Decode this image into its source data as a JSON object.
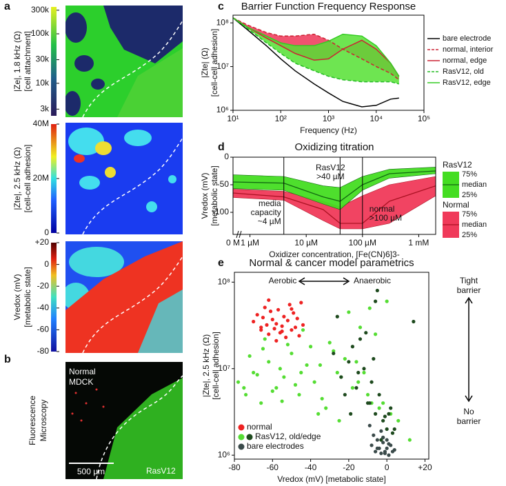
{
  "maps": [
    {
      "panel": "a",
      "ylabel": [
        "|Ze|, 1.8 kHz (Ω)",
        "[cell attachment]"
      ],
      "colorbar": {
        "log": true,
        "lim": [
          2200,
          350000
        ],
        "ticks": [
          {
            "value": 300000,
            "label": "300k"
          },
          {
            "value": 100000,
            "label": "100k"
          },
          {
            "value": 30000,
            "label": "30k"
          },
          {
            "value": 10000,
            "label": "10k"
          },
          {
            "value": 3000,
            "label": "3k"
          }
        ]
      }
    },
    {
      "ylabel": [
        "|Zte|, 2.5 kHz (Ω)",
        "[cell-cell adhesion]"
      ],
      "colorbar": {
        "log": false,
        "lim": [
          0,
          40000000
        ],
        "ticks": [
          {
            "value": 40000000,
            "label": "40M"
          },
          {
            "value": 20000000,
            "label": "20M"
          },
          0
        ]
      }
    },
    {
      "ylabel": [
        "Vredox (mV)",
        "[metabolic state]"
      ],
      "colorbar": {
        "log": false,
        "lim": [
          -80,
          20
        ],
        "ticks": [
          {
            "value": 20,
            "label": "+20"
          },
          0,
          -20,
          -40,
          -60,
          -80
        ]
      }
    }
  ],
  "microscopy": {
    "panel": "b",
    "ylabel": [
      "Fluorescence",
      "Microscopy"
    ],
    "top_label": [
      "Normal",
      "MDCK"
    ],
    "scale_bar": "500 µm",
    "bottom_label": "RasV12"
  },
  "chart_data": [
    {
      "type": "line",
      "panel": "c",
      "title": "Barrier Function Frequency Response",
      "xlabel": "Frequency (Hz)",
      "ylabel": [
        "|Zte| (Ω)",
        "[cell-cell adhesion]"
      ],
      "log_x": true,
      "log_y": true,
      "x": [
        10,
        20,
        50,
        100,
        200,
        500,
        1000,
        2000,
        5000,
        10000,
        20000,
        30000
      ],
      "xlim": [
        10,
        100000
      ],
      "ylim": [
        1000000,
        150000000
      ],
      "xticks": [
        {
          "value": 10,
          "label": "10¹"
        },
        {
          "value": 100,
          "label": "10²"
        },
        {
          "value": 1000,
          "label": "10³"
        },
        {
          "value": 10000,
          "label": "10⁴"
        },
        {
          "value": 100000,
          "label": "10⁵"
        }
      ],
      "yticks": [
        {
          "value": 1000000,
          "label": "10⁶"
        },
        {
          "value": 10000000,
          "label": "10⁷"
        },
        {
          "value": 100000000,
          "label": "10⁸"
        }
      ],
      "series": [
        {
          "name": "bare electrode",
          "color": "#000000",
          "dash": false,
          "values": [
            130000000.0,
            70000000.0,
            30000000.0,
            15000000.0,
            8000000.0,
            4000000.0,
            2500000.0,
            1600000.0,
            1200000.0,
            1300000.0,
            1800000.0,
            1900000.0
          ]
        },
        {
          "name": "normal, interior",
          "color": "#cc2233",
          "dash": true,
          "values": [
            130000000.0,
            90000000.0,
            60000000.0,
            50000000.0,
            50000000.0,
            55000000.0,
            40000000.0,
            25000000.0,
            15000000.0,
            10000000.0,
            7000000.0,
            5000000.0
          ]
        },
        {
          "name": "normal, edge",
          "color": "#cc2233",
          "dash": false,
          "values": [
            130000000.0,
            80000000.0,
            45000000.0,
            30000000.0,
            20000000.0,
            14000000.0,
            15000000.0,
            25000000.0,
            40000000.0,
            25000000.0,
            12000000.0,
            6000000.0
          ]
        },
        {
          "name": "RasV12, old",
          "color": "#22bb22",
          "dash": true,
          "values": [
            130000000.0,
            75000000.0,
            35000000.0,
            20000000.0,
            12000000.0,
            8000000.0,
            6000000.0,
            5000000.0,
            4500000.0,
            4500000.0,
            4500000.0,
            4000000.0
          ]
        },
        {
          "name": "RasV12, edge",
          "color": "#33cc22",
          "dash": false,
          "values": [
            130000000.0,
            80000000.0,
            50000000.0,
            35000000.0,
            30000000.0,
            30000000.0,
            38000000.0,
            55000000.0,
            50000000.0,
            30000000.0,
            12000000.0,
            6000000.0
          ]
        }
      ],
      "bands": [
        {
          "between": [
            1,
            2
          ],
          "color": "#f04060"
        },
        {
          "between": [
            3,
            4
          ],
          "color": "#55e033"
        }
      ]
    },
    {
      "type": "band",
      "panel": "d",
      "title": "Oxidizing titration",
      "xlabel": "Oxidizer concentration, [Fe(CN)6]3-",
      "ylabel": [
        "Vredox (mV)",
        "[metabolic state]"
      ],
      "log_x": true,
      "x": [
        0.5,
        4,
        20,
        40,
        100,
        300,
        2000
      ],
      "xlim": [
        0.5,
        2000
      ],
      "ylim": [
        -140,
        0
      ],
      "zero_tick": "0 M",
      "xticks": [
        {
          "value": 1,
          "label": "1 µM"
        },
        {
          "value": 10,
          "label": "10 µM"
        },
        {
          "value": 100,
          "label": "100 µM"
        },
        {
          "value": 1000,
          "label": "1 mM"
        }
      ],
      "yticks": [
        0,
        -50,
        -100
      ],
      "band_labels": [
        "75%",
        "median",
        "25%"
      ],
      "series": [
        {
          "name": "Normal",
          "color": "#aa1122",
          "fill": "#f03a5a",
          "values": [
            -65,
            -72,
            -95,
            -120,
            -120,
            -80,
            -52
          ],
          "upper": [
            -58,
            -62,
            -80,
            -90,
            -70,
            -50,
            -35
          ],
          "lower": [
            -73,
            -78,
            -115,
            -130,
            -130,
            -120,
            -70
          ]
        },
        {
          "name": "RasV12",
          "color": "#116611",
          "fill": "#44dd22",
          "values": [
            -45,
            -47,
            -72,
            -80,
            -50,
            -30,
            -25
          ],
          "upper": [
            -32,
            -35,
            -52,
            -55,
            -35,
            -22,
            -18
          ],
          "lower": [
            -57,
            -60,
            -85,
            -95,
            -60,
            -38,
            -30
          ]
        }
      ],
      "annotations": [
        {
          "lines": [
            "media",
            "capacity",
            "~4 µM"
          ],
          "x": 4
        },
        {
          "lines": [
            "RasV12",
            ">40 µM"
          ],
          "x": 40
        },
        {
          "lines": [
            "normal",
            ">100 µM"
          ],
          "x": 100
        }
      ]
    },
    {
      "type": "scatter",
      "panel": "e",
      "title": "Normal & cancer model parametrics",
      "xlabel": "Vredox (mV) [metabolic state]",
      "ylabel": [
        "|Zte|, 2.5 kHz (Ω)",
        "[cell-cell adhesion]"
      ],
      "log_y": true,
      "xlim": [
        -80,
        22
      ],
      "ylim": [
        900000,
        130000000
      ],
      "xticks": [
        -80,
        -60,
        -40,
        -20,
        0,
        {
          "value": 20,
          "label": "+20"
        }
      ],
      "yticks": [
        {
          "value": 1000000,
          "label": "10⁶"
        },
        {
          "value": 10000000,
          "label": "10⁷"
        },
        {
          "value": 100000000,
          "label": "10⁸"
        }
      ],
      "annotations": [
        {
          "lines": [
            "Aerobic"
          ]
        },
        {
          "lines": [
            "Anaerobic"
          ]
        },
        {
          "lines": [
            "Tight",
            "barrier"
          ]
        },
        {
          "lines": [
            "No",
            "barrier"
          ]
        }
      ],
      "series": [
        {
          "name": "normal",
          "color": "#ee2222",
          "x": [
            -70,
            -68,
            -66,
            -65,
            -64,
            -63,
            -62,
            -61,
            -60,
            -59,
            -58,
            -57,
            -56,
            -55,
            -54,
            -53,
            -52,
            -51,
            -50,
            -49,
            -48,
            -47,
            -46,
            -45,
            -44,
            -62,
            -58,
            -55,
            -50,
            -66
          ],
          "values": [
            35000000.0,
            42000000.0,
            28000000.0,
            39000000.0,
            51000000.0,
            32000000.0,
            25000000.0,
            46000000.0,
            37000000.0,
            29000000.0,
            33000000.0,
            48000000.0,
            26000000.0,
            31000000.0,
            40000000.0,
            23000000.0,
            36000000.0,
            55000000.0,
            28000000.0,
            44000000.0,
            30000000.0,
            38000000.0,
            24000000.0,
            58000000.0,
            32000000.0,
            62000000.0,
            21000000.0,
            27000000.0,
            49000000.0,
            30000000.0
          ]
        },
        {
          "name": "RasV12, old/edge",
          "colors": [
            "#55dd33",
            "#1e4a1e"
          ],
          "subsets": [
            {
              "x": [
                -78,
                -74,
                -70,
                -66,
                -62,
                -58,
                -54,
                -50,
                -46,
                -42,
                -38,
                -34,
                -30,
                -26,
                -22,
                -18,
                -14,
                -10,
                -6,
                -2,
                2,
                -72,
                -64,
                -56,
                -48,
                -40,
                -32,
                -24,
                -16,
                -8,
                0,
                -60,
                -44,
                -28,
                -12,
                -4,
                -20,
                -36,
                -52,
                -68,
                6,
                -9,
                -15,
                -25,
                -35,
                -45,
                -55,
                -65,
                -75,
                12
              ],
              "values": [
                7000000.0,
                5000000.0,
                9000000.0,
                4000000.0,
                12000000.0,
                6000000.0,
                8000000.0,
                15000000.0,
                5000000.0,
                11000000.0,
                7000000.0,
                4500000.0,
                20000000.0,
                9000000.0,
                13000000.0,
                6000000.0,
                30000000.0,
                5000000.0,
                25000000.0,
                4000000.0,
                3000000.0,
                14000000.0,
                22000000.0,
                10000000.0,
                6500000.0,
                18000000.0,
                3500000.0,
                8000000.0,
                12000000.0,
                4000000.0,
                60000000.0,
                5500000.0,
                28000000.0,
                16000000.0,
                9000000.0,
                3500000.0,
                45000000.0,
                3000000.0,
                19000000.0,
                8500000.0,
                2500000.0,
                50000000.0,
                7000000.0,
                2500000.0,
                11000000.0,
                9000000.0,
                4200000.0,
                17000000.0,
                6000000.0,
                1500000.0
              ]
            },
            {
              "x": [
                -28,
                -24,
                -20,
                -16,
                -12,
                -10,
                -8,
                -6,
                -4,
                -2,
                0,
                2,
                4,
                -14,
                -18,
                -22,
                -9,
                -5,
                -3,
                -1,
                1,
                -7,
                -11,
                -15,
                -19,
                3,
                -6,
                -2,
                14,
                -26
              ],
              "values": [
                15000000.0,
                8000000.0,
                12000000.0,
                6000000.0,
                10000000.0,
                4000000.0,
                7000000.0,
                3000000.0,
                5000000.0,
                2500000.0,
                2000000.0,
                3500000.0,
                2000000.0,
                22000000.0,
                18000000.0,
                5000000.0,
                4000000.0,
                80000000.0,
                1500000.0,
                2800000.0,
                3000000.0,
                13000000.0,
                26000000.0,
                9000000.0,
                3000000.0,
                1800000.0,
                60000000.0,
                1600000.0,
                35000000.0,
                40000000.0
              ]
            }
          ]
        },
        {
          "name": "bare electrodes",
          "color": "#3a4a4a",
          "x": [
            -8,
            -6,
            -5,
            -4,
            -3,
            -2,
            -1,
            0,
            1,
            2,
            -7,
            -3,
            -1,
            0,
            3,
            -5,
            -2,
            1,
            4,
            -9
          ],
          "values": [
            1300000.0,
            1100000.0,
            1500000.0,
            1200000.0,
            1050000.0,
            1400000.0,
            1100000.0,
            1200000.0,
            1000000.0,
            1300000.0,
            1700000.0,
            1900000.0,
            1050000.0,
            1500000.0,
            1100000.0,
            1200000.0,
            1600000.0,
            1350000.0,
            1150000.0,
            2200000.0
          ]
        }
      ]
    }
  ]
}
